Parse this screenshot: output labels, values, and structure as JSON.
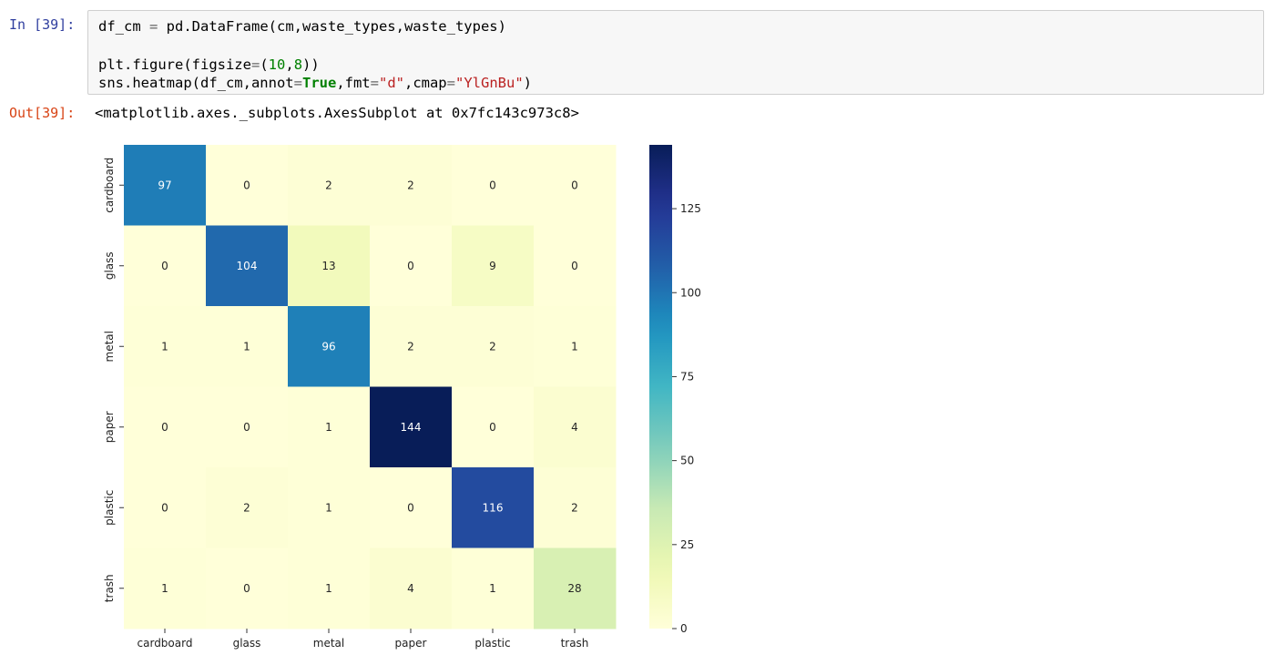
{
  "cell": {
    "in_prompt": "In [39]:",
    "out_prompt": "Out[39]:",
    "output_text": "<matplotlib.axes._subplots.AxesSubplot at 0x7fc143c973c8>",
    "code_lines": [
      "df_cm = pd.DataFrame(cm,waste_types,waste_types)",
      "",
      "plt.figure(figsize=(10,8))",
      "sns.heatmap(df_cm,annot=True,fmt=\"d\",cmap=\"YlGnBu\")"
    ]
  },
  "chart_data": {
    "type": "heatmap",
    "title": "",
    "xlabel": "",
    "ylabel": "",
    "x_categories": [
      "cardboard",
      "glass",
      "metal",
      "paper",
      "plastic",
      "trash"
    ],
    "y_categories": [
      "cardboard",
      "glass",
      "metal",
      "paper",
      "plastic",
      "trash"
    ],
    "values": [
      [
        97,
        0,
        2,
        2,
        0,
        0
      ],
      [
        0,
        104,
        13,
        0,
        9,
        0
      ],
      [
        1,
        1,
        96,
        2,
        2,
        1
      ],
      [
        0,
        0,
        1,
        144,
        0,
        4
      ],
      [
        0,
        2,
        1,
        0,
        116,
        2
      ],
      [
        1,
        0,
        1,
        4,
        1,
        28
      ]
    ],
    "colormap": "YlGnBu",
    "color_range": [
      0,
      144
    ],
    "colorbar_ticks": [
      0,
      25,
      50,
      75,
      100,
      125
    ],
    "annotated": true,
    "grid": false
  }
}
